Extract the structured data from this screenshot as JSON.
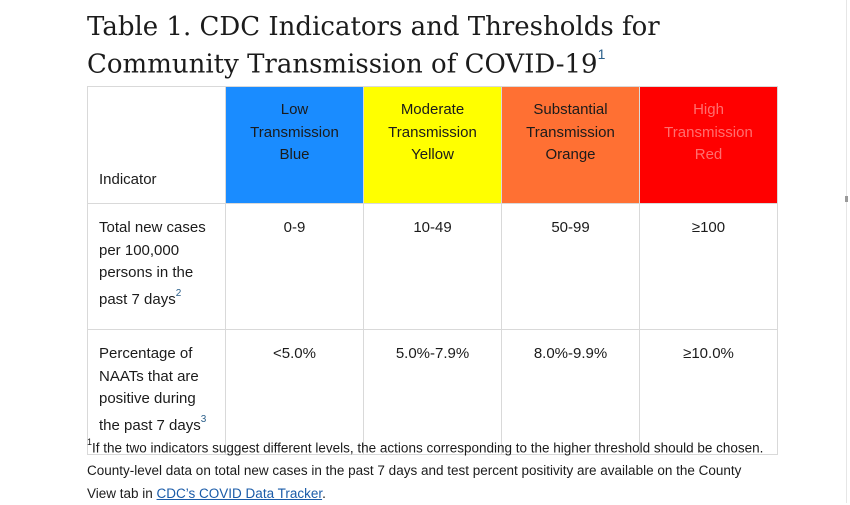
{
  "title": {
    "text": "Table 1. CDC Indicators and Thresholds for Community Transmission of COVID-19",
    "footnote_ref": "1"
  },
  "table": {
    "indicator_header": "Indicator",
    "levels": [
      {
        "line1": "Low",
        "line2": "Transmission",
        "line3": "Blue",
        "color": "#1a8cff",
        "text_color": "#1b1b1b"
      },
      {
        "line1": "Moderate",
        "line2": "Transmission",
        "line3": "Yellow",
        "color": "#ffff00",
        "text_color": "#1b1b1b"
      },
      {
        "line1": "Substantial",
        "line2": "Transmission",
        "line3": "Orange",
        "color": "#ff7033",
        "text_color": "#1b1b1b"
      },
      {
        "line1": "High",
        "line2": "Transmission",
        "line3": "Red",
        "color": "#ff0000",
        "text_color": "#ff6e6e"
      }
    ],
    "rows": [
      {
        "indicator": "Total new cases per 100,000 persons in the past 7 days",
        "footnote_ref": "2",
        "values": [
          "0-9",
          "10-49",
          "50-99",
          "≥100"
        ]
      },
      {
        "indicator": "Percentage of NAATs that are positive during the past 7 days",
        "footnote_ref": "3",
        "values": [
          "<5.0%",
          "5.0%-7.9%",
          "8.0%-9.9%",
          "≥10.0%"
        ]
      }
    ]
  },
  "footnote": {
    "marker": "1",
    "text": "If the two indicators suggest different levels, the actions corresponding to the higher threshold should be chosen. County-level data on total new cases in the past 7 days and test percent positivity are available on the County View tab in ",
    "link_text": "CDC’s COVID Data Tracker",
    "end": "."
  },
  "colors": {
    "link": "#1a5ba8",
    "border": "#d9d9d9"
  }
}
